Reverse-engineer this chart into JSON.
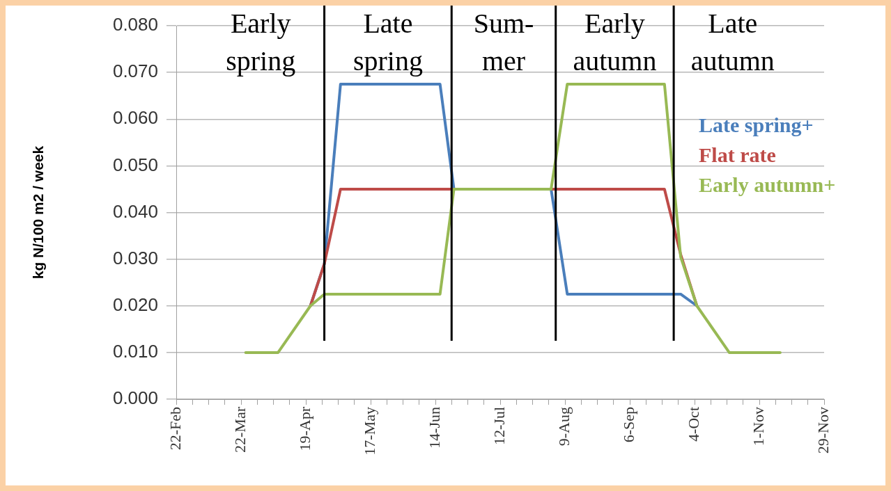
{
  "chart_data": {
    "type": "line",
    "ylabel": "kg N/100 m2 / week",
    "xlim": [
      "--02-22",
      "--11-29"
    ],
    "ylim": [
      0,
      0.08
    ],
    "yticks": [
      {
        "value": 0,
        "label": "0.000"
      },
      {
        "value": 0.01,
        "label": "0.010"
      },
      {
        "value": 0.02,
        "label": "0.020"
      },
      {
        "value": 0.03,
        "label": "0.030"
      },
      {
        "value": 0.04,
        "label": "0.040"
      },
      {
        "value": 0.05,
        "label": "0.050"
      },
      {
        "value": 0.06,
        "label": "0.060"
      },
      {
        "value": 0.07,
        "label": "0.070"
      },
      {
        "value": 0.08,
        "label": "0.080"
      }
    ],
    "xticks": [
      {
        "value": "--02-22",
        "label": "22-Feb"
      },
      {
        "value": "--03-01",
        "label": null
      },
      {
        "value": "--03-08",
        "label": null
      },
      {
        "value": "--03-15",
        "label": null
      },
      {
        "value": "--03-22",
        "label": "22-Mar"
      },
      {
        "value": "--03-29",
        "label": null
      },
      {
        "value": "--04-05",
        "label": null
      },
      {
        "value": "--04-12",
        "label": null
      },
      {
        "value": "--04-19",
        "label": "19-Apr"
      },
      {
        "value": "--04-26",
        "label": null
      },
      {
        "value": "--05-03",
        "label": null
      },
      {
        "value": "--05-10",
        "label": null
      },
      {
        "value": "--05-17",
        "label": "17-May"
      },
      {
        "value": "--05-24",
        "label": null
      },
      {
        "value": "--05-31",
        "label": null
      },
      {
        "value": "--06-07",
        "label": null
      },
      {
        "value": "--06-14",
        "label": "14-Jun"
      },
      {
        "value": "--06-21",
        "label": null
      },
      {
        "value": "--06-28",
        "label": null
      },
      {
        "value": "--07-05",
        "label": null
      },
      {
        "value": "--07-12",
        "label": "12-Jul"
      },
      {
        "value": "--07-19",
        "label": null
      },
      {
        "value": "--07-26",
        "label": null
      },
      {
        "value": "--08-02",
        "label": null
      },
      {
        "value": "--08-09",
        "label": "9-Aug"
      },
      {
        "value": "--08-16",
        "label": null
      },
      {
        "value": "--08-23",
        "label": null
      },
      {
        "value": "--08-30",
        "label": null
      },
      {
        "value": "--09-06",
        "label": "6-Sep"
      },
      {
        "value": "--09-13",
        "label": null
      },
      {
        "value": "--09-20",
        "label": null
      },
      {
        "value": "--09-27",
        "label": null
      },
      {
        "value": "--10-04",
        "label": "4-Oct"
      },
      {
        "value": "--10-11",
        "label": null
      },
      {
        "value": "--10-18",
        "label": null
      },
      {
        "value": "--10-25",
        "label": null
      },
      {
        "value": "--11-01",
        "label": "1-Nov"
      },
      {
        "value": "--11-08",
        "label": null
      },
      {
        "value": "--11-15",
        "label": null
      },
      {
        "value": "--11-22",
        "label": null
      },
      {
        "value": "--11-29",
        "label": "29-Nov"
      }
    ],
    "grid": "y",
    "legend": "right",
    "marker": "none",
    "line_style": "solid",
    "series": [
      {
        "name": "Late spring+",
        "color": "#4a7ebb",
        "x": [
          "--04-21",
          "--04-27",
          "--05-04",
          "--06-16",
          "--06-22",
          "--08-03",
          "--08-10",
          "--09-28",
          "--10-05"
        ],
        "values": [
          0.02,
          0.029,
          0.0675,
          0.0675,
          0.045,
          0.045,
          0.0225,
          0.0225,
          0.02
        ]
      },
      {
        "name": "Flat rate",
        "color": "#be4b48",
        "x": [
          "--04-21",
          "--04-27",
          "--05-04",
          "--09-21",
          "--09-28",
          "--10-05"
        ],
        "values": [
          0.02,
          0.029,
          0.045,
          0.045,
          0.031,
          0.02
        ]
      },
      {
        "name": "Early autumn+",
        "color": "#98b954",
        "x": [
          "--03-24",
          "--04-07",
          "--04-21",
          "--04-27",
          "--06-16",
          "--06-22",
          "--08-03",
          "--08-10",
          "--09-21",
          "--09-28",
          "--10-05",
          "--10-19",
          "--11-10"
        ],
        "values": [
          0.01,
          0.01,
          0.02,
          0.0225,
          0.0225,
          0.045,
          0.045,
          0.0675,
          0.0675,
          0.0305,
          0.02,
          0.01,
          0.01
        ]
      }
    ],
    "ref_lines": [
      {
        "axis": "x",
        "value": "--04-27",
        "color": "#000000"
      },
      {
        "axis": "x",
        "value": "--06-21",
        "color": "#000000"
      },
      {
        "axis": "x",
        "value": "--08-05",
        "color": "#000000"
      },
      {
        "axis": "x",
        "value": "--09-25",
        "color": "#000000"
      }
    ],
    "annotations": [
      "Early\nspring",
      "Late\nspring",
      "Sum-\nmer",
      "Early\nautumn",
      "Late\nautumn"
    ]
  }
}
